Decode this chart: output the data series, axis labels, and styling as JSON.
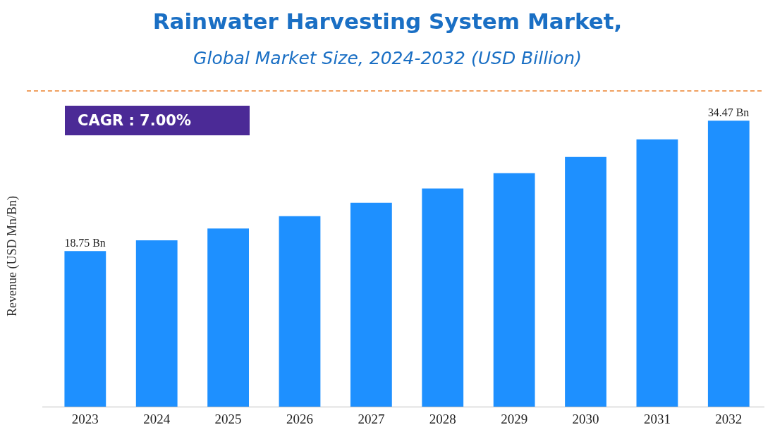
{
  "chart_data": {
    "type": "bar",
    "title": "Rainwater Harvesting System Market,",
    "subtitle": "Global Market Size, 2024-2032 (USD Billion)",
    "ylabel": "Revenue (USD Mn/Bn)",
    "categories": [
      "2023",
      "2024",
      "2025",
      "2026",
      "2027",
      "2028",
      "2029",
      "2030",
      "2031",
      "2032"
    ],
    "values": [
      18.75,
      20.06,
      21.47,
      22.97,
      24.58,
      26.3,
      28.14,
      30.11,
      32.22,
      34.47
    ],
    "value_labels": [
      "18.75 Bn",
      null,
      null,
      null,
      null,
      null,
      null,
      null,
      null,
      "34.47 Bn"
    ],
    "color": "#1e90ff",
    "annotations": [
      "CAGR : 7.00%"
    ]
  }
}
